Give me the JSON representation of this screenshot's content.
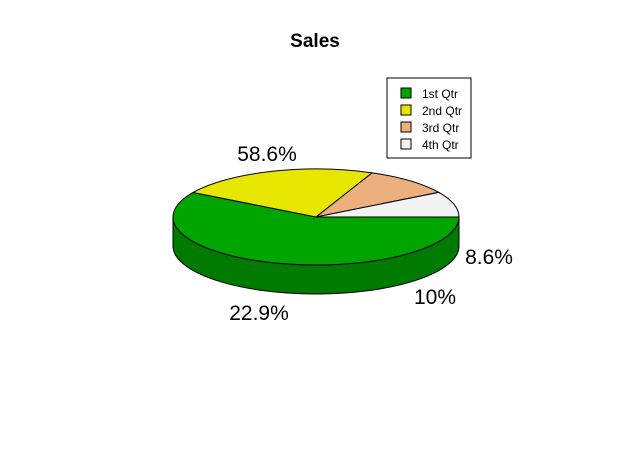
{
  "chart_data": {
    "type": "pie",
    "style": "3d-exploded-pie",
    "title": "Sales",
    "categories": [
      "1st Qtr",
      "2nd Qtr",
      "3rd Qtr",
      "4th Qtr"
    ],
    "values": [
      58.6,
      22.9,
      10.0,
      8.6
    ],
    "data_labels": [
      "58.6%",
      "22.9%",
      "10%",
      "8.6%"
    ],
    "colors": [
      "#00A500",
      "#E6E600",
      "#EBB07E",
      "#F2F2F2"
    ],
    "side_colors": [
      "#007A00",
      "#BDBD00",
      "#C08C60",
      "#C4C4C4"
    ],
    "legend": {
      "position": "top-right",
      "entries": [
        "1st Qtr",
        "2nd Qtr",
        "3rd Qtr",
        "4th Qtr"
      ]
    }
  }
}
